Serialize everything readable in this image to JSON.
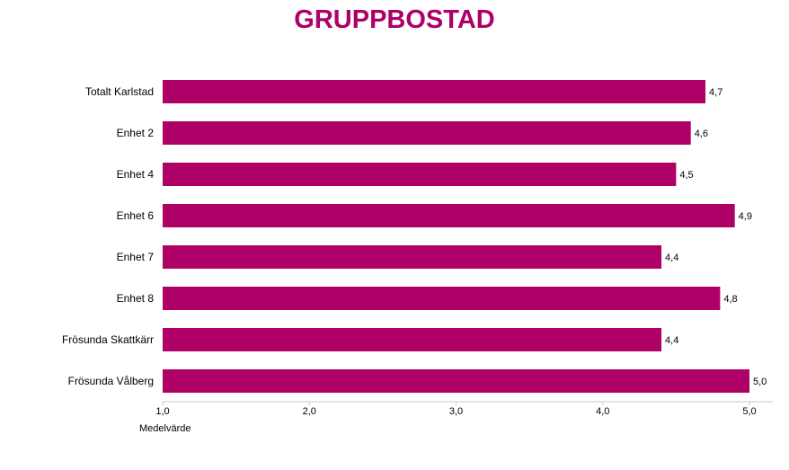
{
  "chart_data": {
    "type": "bar",
    "orientation": "horizontal",
    "title": "GRUPPBOSTAD",
    "xlabel": "Medelvärde",
    "ylabel": "",
    "xlim": [
      1.0,
      5.0
    ],
    "ticks": [
      "1,0",
      "2,0",
      "3,0",
      "4,0",
      "5,0"
    ],
    "tick_values": [
      1,
      2,
      3,
      4,
      5
    ],
    "categories": [
      "Totalt Karlstad",
      "Enhet 2",
      "Enhet 4",
      "Enhet 6",
      "Enhet 7",
      "Enhet 8",
      "Frösunda Skattkärr",
      "Frösunda Vålberg"
    ],
    "values": [
      4.7,
      4.6,
      4.5,
      4.9,
      4.4,
      4.8,
      4.4,
      5.0
    ],
    "value_labels": [
      "4,7",
      "4,6",
      "4,5",
      "4,9",
      "4,4",
      "4,8",
      "4,4",
      "5,0"
    ],
    "grid": false,
    "legend": "none",
    "bar_color": "#AE0066",
    "title_color": "#AE0066"
  }
}
